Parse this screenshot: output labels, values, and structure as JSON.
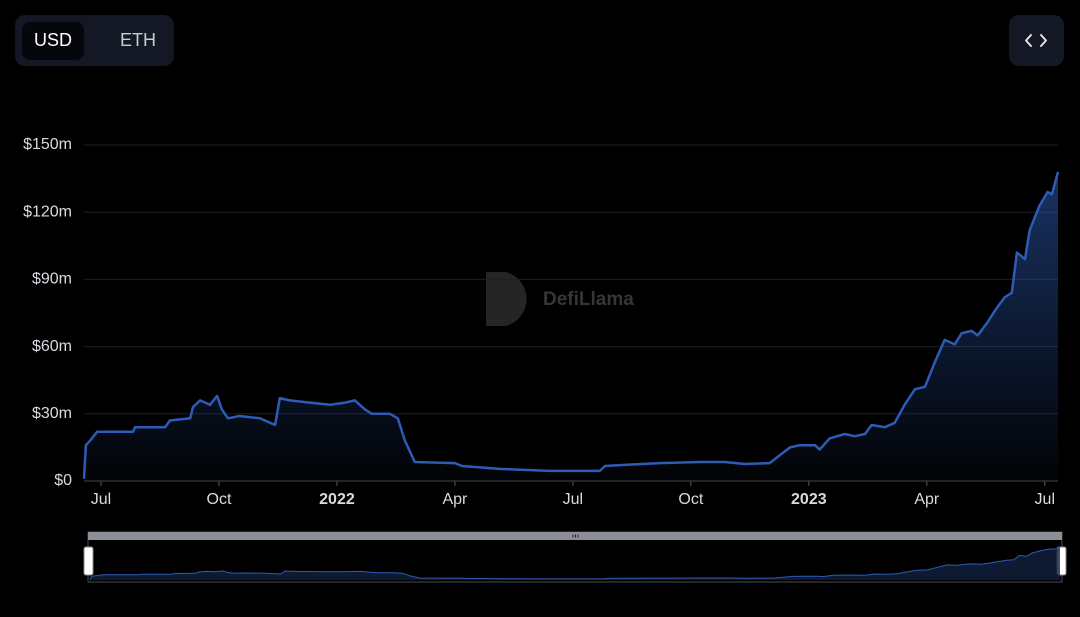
{
  "chart_data": {
    "type": "area",
    "toggle": [
      "USD",
      "ETH"
    ],
    "watermark": "DefiLlama",
    "color": "#2e5bb5",
    "grid": true,
    "xlim": [
      2021.464,
      2023.528
    ],
    "xticks": [
      {
        "value": 2021.5,
        "label": "Jul"
      },
      {
        "value": 2021.75,
        "label": "Oct"
      },
      2022,
      {
        "value": 2022.25,
        "label": "Apr"
      },
      {
        "value": 2022.5,
        "label": "Jul"
      },
      {
        "value": 2022.75,
        "label": "Oct"
      },
      2023,
      {
        "value": 2023.25,
        "label": "Apr"
      },
      {
        "value": 2023.5,
        "label": "Jul"
      }
    ],
    "ylim": [
      0,
      150
    ],
    "yticks": [
      {
        "value": 0,
        "label": "$0"
      },
      {
        "value": 30,
        "label": "$30m"
      },
      {
        "value": 60,
        "label": "$60m"
      },
      {
        "value": 90,
        "label": "$90m"
      },
      {
        "value": 120,
        "label": "$120m"
      },
      {
        "value": 150,
        "label": "$150m"
      }
    ],
    "x": [
      2021.464,
      2021.468,
      2021.477,
      2021.492,
      2021.568,
      2021.572,
      2021.636,
      2021.646,
      2021.689,
      2021.695,
      2021.71,
      2021.731,
      2021.746,
      2021.756,
      2021.769,
      2021.794,
      2021.837,
      2021.869,
      2021.879,
      2021.9,
      2021.943,
      2021.985,
      2022.017,
      2022.038,
      2022.059,
      2022.074,
      2022.112,
      2022.129,
      2022.144,
      2022.165,
      2022.25,
      2022.265,
      2022.345,
      2022.451,
      2022.557,
      2022.568,
      2022.6,
      2022.684,
      2022.769,
      2022.822,
      2022.864,
      2022.917,
      2022.939,
      2022.96,
      2022.981,
      2023.013,
      2023.023,
      2023.044,
      2023.076,
      2023.097,
      2023.119,
      2023.133,
      2023.161,
      2023.182,
      2023.203,
      2023.225,
      2023.246,
      2023.267,
      2023.288,
      2023.309,
      2023.324,
      2023.345,
      2023.358,
      2023.379,
      2023.394,
      2023.415,
      2023.43,
      2023.441,
      2023.458,
      2023.468,
      2023.489,
      2023.506,
      2023.515,
      2023.528
    ],
    "values": [
      1,
      16,
      18,
      22,
      22,
      24,
      24,
      27,
      28,
      33,
      36,
      34,
      38,
      32,
      28,
      29,
      28,
      25,
      37,
      36,
      35,
      34,
      35,
      36,
      32,
      30,
      30,
      28,
      18,
      8.5,
      8,
      6.7,
      5.4,
      4.5,
      4.5,
      6.7,
      7.1,
      8,
      8.5,
      8.5,
      7.6,
      8,
      11.6,
      15,
      16,
      16,
      14,
      19,
      21,
      20,
      21,
      25,
      24,
      26,
      34,
      41,
      42,
      53,
      63,
      61,
      66,
      67,
      65,
      71,
      76,
      82,
      84,
      102,
      99,
      112,
      123,
      129,
      128,
      138
    ]
  }
}
